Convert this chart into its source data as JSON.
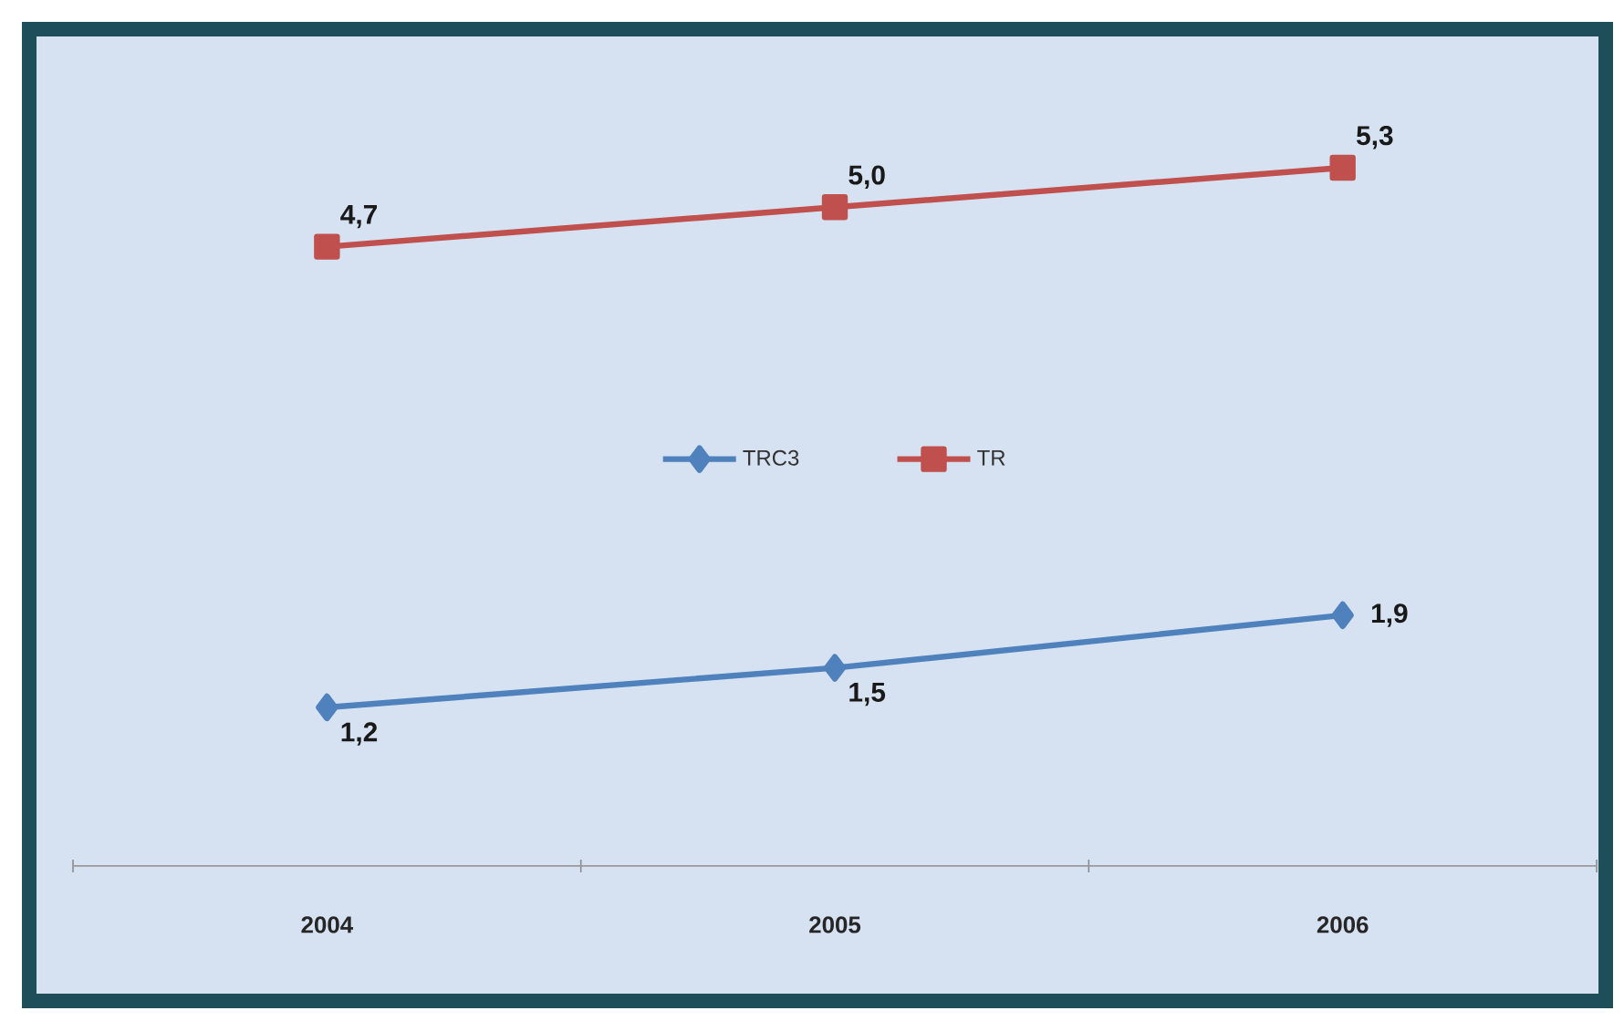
{
  "chart_data": {
    "type": "line",
    "categories": [
      "2004",
      "2005",
      "2006"
    ],
    "tick_labels": "x",
    "legend": "center",
    "series": [
      {
        "name": "TRC3",
        "color": "#4f81bd",
        "marker": "diamond",
        "values": [
          1.2,
          1.5,
          1.9
        ],
        "value_labels": [
          "1,2",
          "1,5",
          "1,9"
        ]
      },
      {
        "name": "TR",
        "color": "#c0504d",
        "marker": "square",
        "values": [
          4.7,
          5.0,
          5.3
        ],
        "value_labels": [
          "4,7",
          "5,0",
          "5,3"
        ]
      }
    ]
  }
}
